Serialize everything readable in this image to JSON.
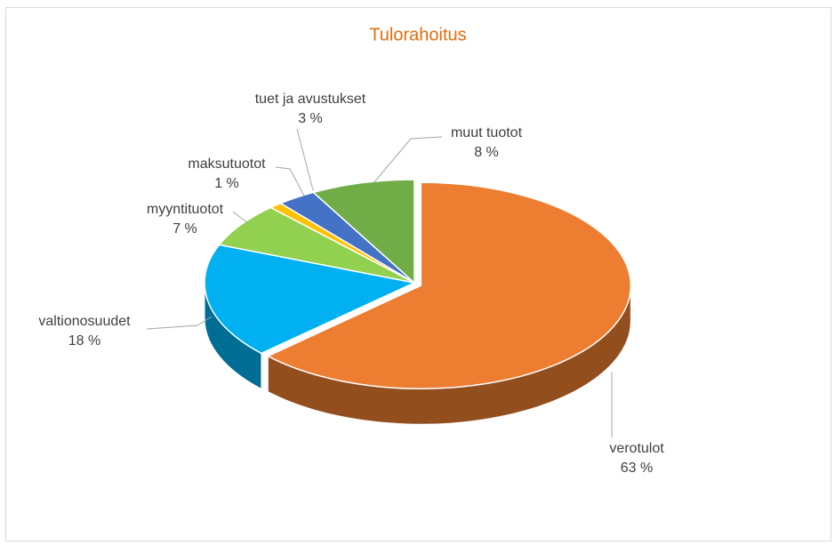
{
  "chart_data": {
    "type": "pie3d",
    "title": "Tulorahoitus",
    "categories": [
      "verotulot",
      "valtionosuudet",
      "myyntituotot",
      "maksutuotot",
      "tuet ja avustukset",
      "muut tuotot"
    ],
    "values": [
      63,
      18,
      7,
      1,
      3,
      8
    ],
    "value_labels": [
      "63 %",
      "18 %",
      "7 %",
      "1 %",
      "3 %",
      "8 %"
    ],
    "colors": [
      "#ed7d31",
      "#00b0f0",
      "#92d050",
      "#ffc000",
      "#4472c4",
      "#70ad47"
    ]
  }
}
